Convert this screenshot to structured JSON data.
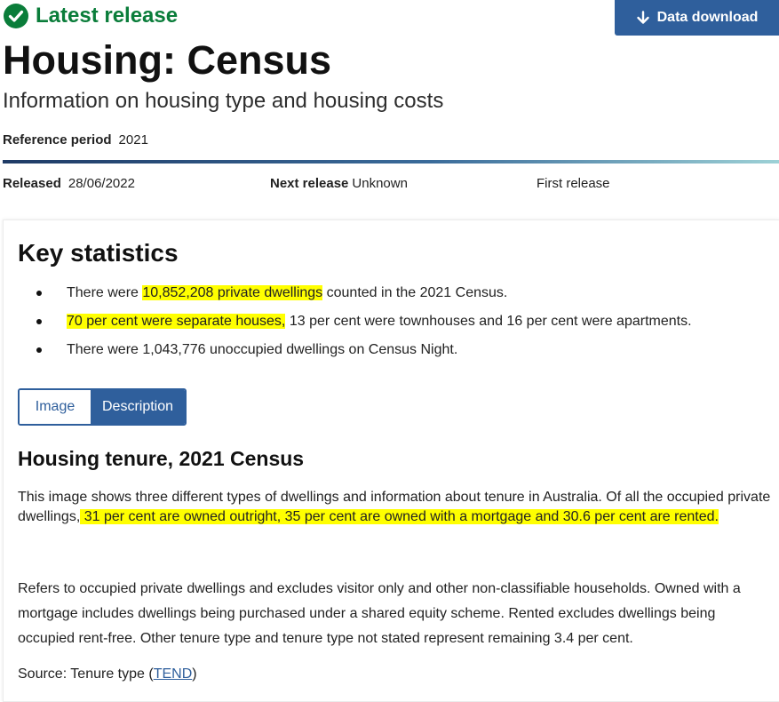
{
  "status": {
    "label": "Latest release",
    "color": "#0a7d3a",
    "icon": "check-circle-icon"
  },
  "download": {
    "label": "Data download",
    "icon": "arrow-down-icon",
    "color": "#2f5f9c"
  },
  "title": "Housing: Census",
  "subtitle": "Information on housing type and housing costs",
  "reference": {
    "label": "Reference period",
    "value": "2021"
  },
  "release": {
    "released_label": "Released",
    "released_value": "28/06/2022",
    "next_label": "Next release",
    "next_value": "Unknown",
    "first_label": "First release"
  },
  "key_stats": {
    "title": "Key statistics",
    "items": [
      {
        "pre": "There were ",
        "highlight": "10,852,208 private dwellings",
        "post": " counted in the 2021 Census."
      },
      {
        "pre": "",
        "highlight": "70 per cent were separate houses,",
        "post": " 13 per cent were townhouses and 16 per cent were apartments."
      },
      {
        "pre": "There were 1,043,776 unoccupied dwellings on Census Night.",
        "highlight": "",
        "post": ""
      }
    ]
  },
  "tabs": [
    {
      "label": "Image",
      "active": false
    },
    {
      "label": "Description",
      "active": true
    }
  ],
  "tenure": {
    "title": "Housing tenure, 2021 Census",
    "para1_pre": "This image shows three different types of dwellings and information about tenure in Australia. Of all the occupied private dwellings,",
    "para1_highlight": " 31 per cent are owned outright, 35 per cent are owned with a mortgage and 30.6 per cent are rented.",
    "para2": "Refers to occupied private dwellings and excludes visitor only and other non-classifiable households. Owned with a mortgage includes dwellings being purchased under a shared equity scheme. Rented excludes dwellings being occupied rent-free. Other tenure type and tenure type not stated represent remaining 3.4 per cent.",
    "source_prefix": "Source: Tenure type (",
    "source_link": "TEND",
    "source_suffix": ")"
  },
  "highlight_color": "#ffff00"
}
